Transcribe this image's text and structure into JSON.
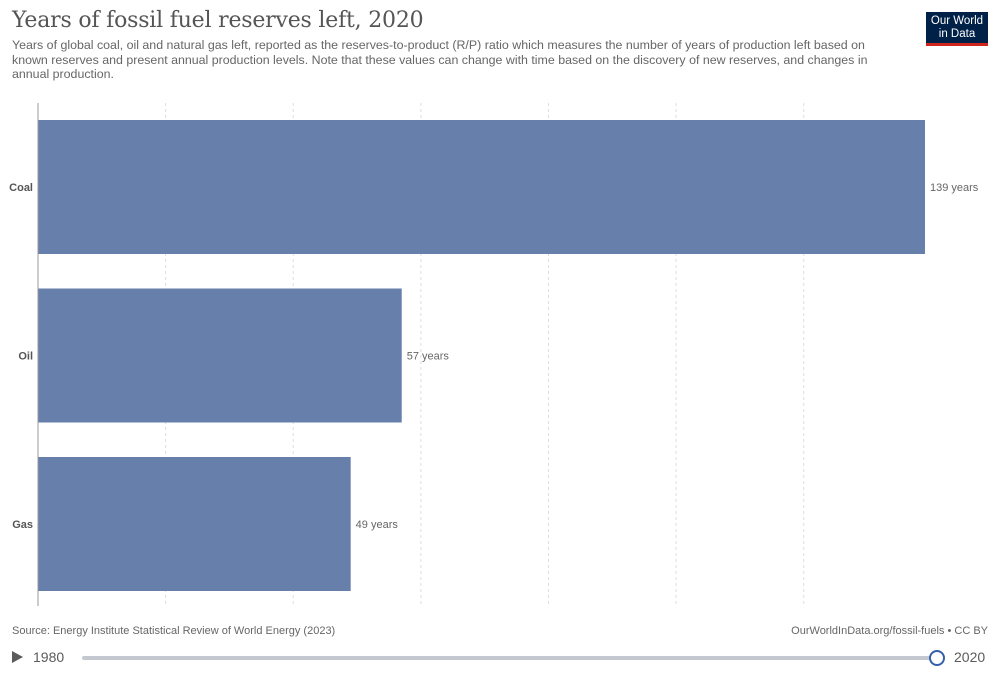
{
  "header": {
    "title": "Years of fossil fuel reserves left, 2020",
    "subtitle": "Years of global coal, oil and natural gas left, reported as the reserves-to-product (R/P) ratio which measures the number of years of production left based on known reserves and present annual production levels. Note that these values can change with time based on the discovery of new reserves, and changes in annual production."
  },
  "logo": {
    "line1": "Our World",
    "line2": "in Data"
  },
  "chart_data": {
    "type": "bar",
    "orientation": "horizontal",
    "title": "Years of fossil fuel reserves left, 2020",
    "categories": [
      "Coal",
      "Oil",
      "Gas"
    ],
    "values": [
      139,
      57,
      49
    ],
    "value_labels": [
      "139 years",
      "57 years",
      "49 years"
    ],
    "xlim": [
      0,
      139
    ],
    "grid": true,
    "gridlines_at": [
      20,
      40,
      60,
      80,
      100,
      120
    ],
    "bar_color": "#6780ab"
  },
  "footer": {
    "source": "Source: Energy Institute Statistical Review of World Energy (2023)",
    "url": "OurWorldInData.org/fossil-fuels • CC BY"
  },
  "timeline": {
    "start_year": "1980",
    "end_year": "2020",
    "progress": 1.0
  }
}
